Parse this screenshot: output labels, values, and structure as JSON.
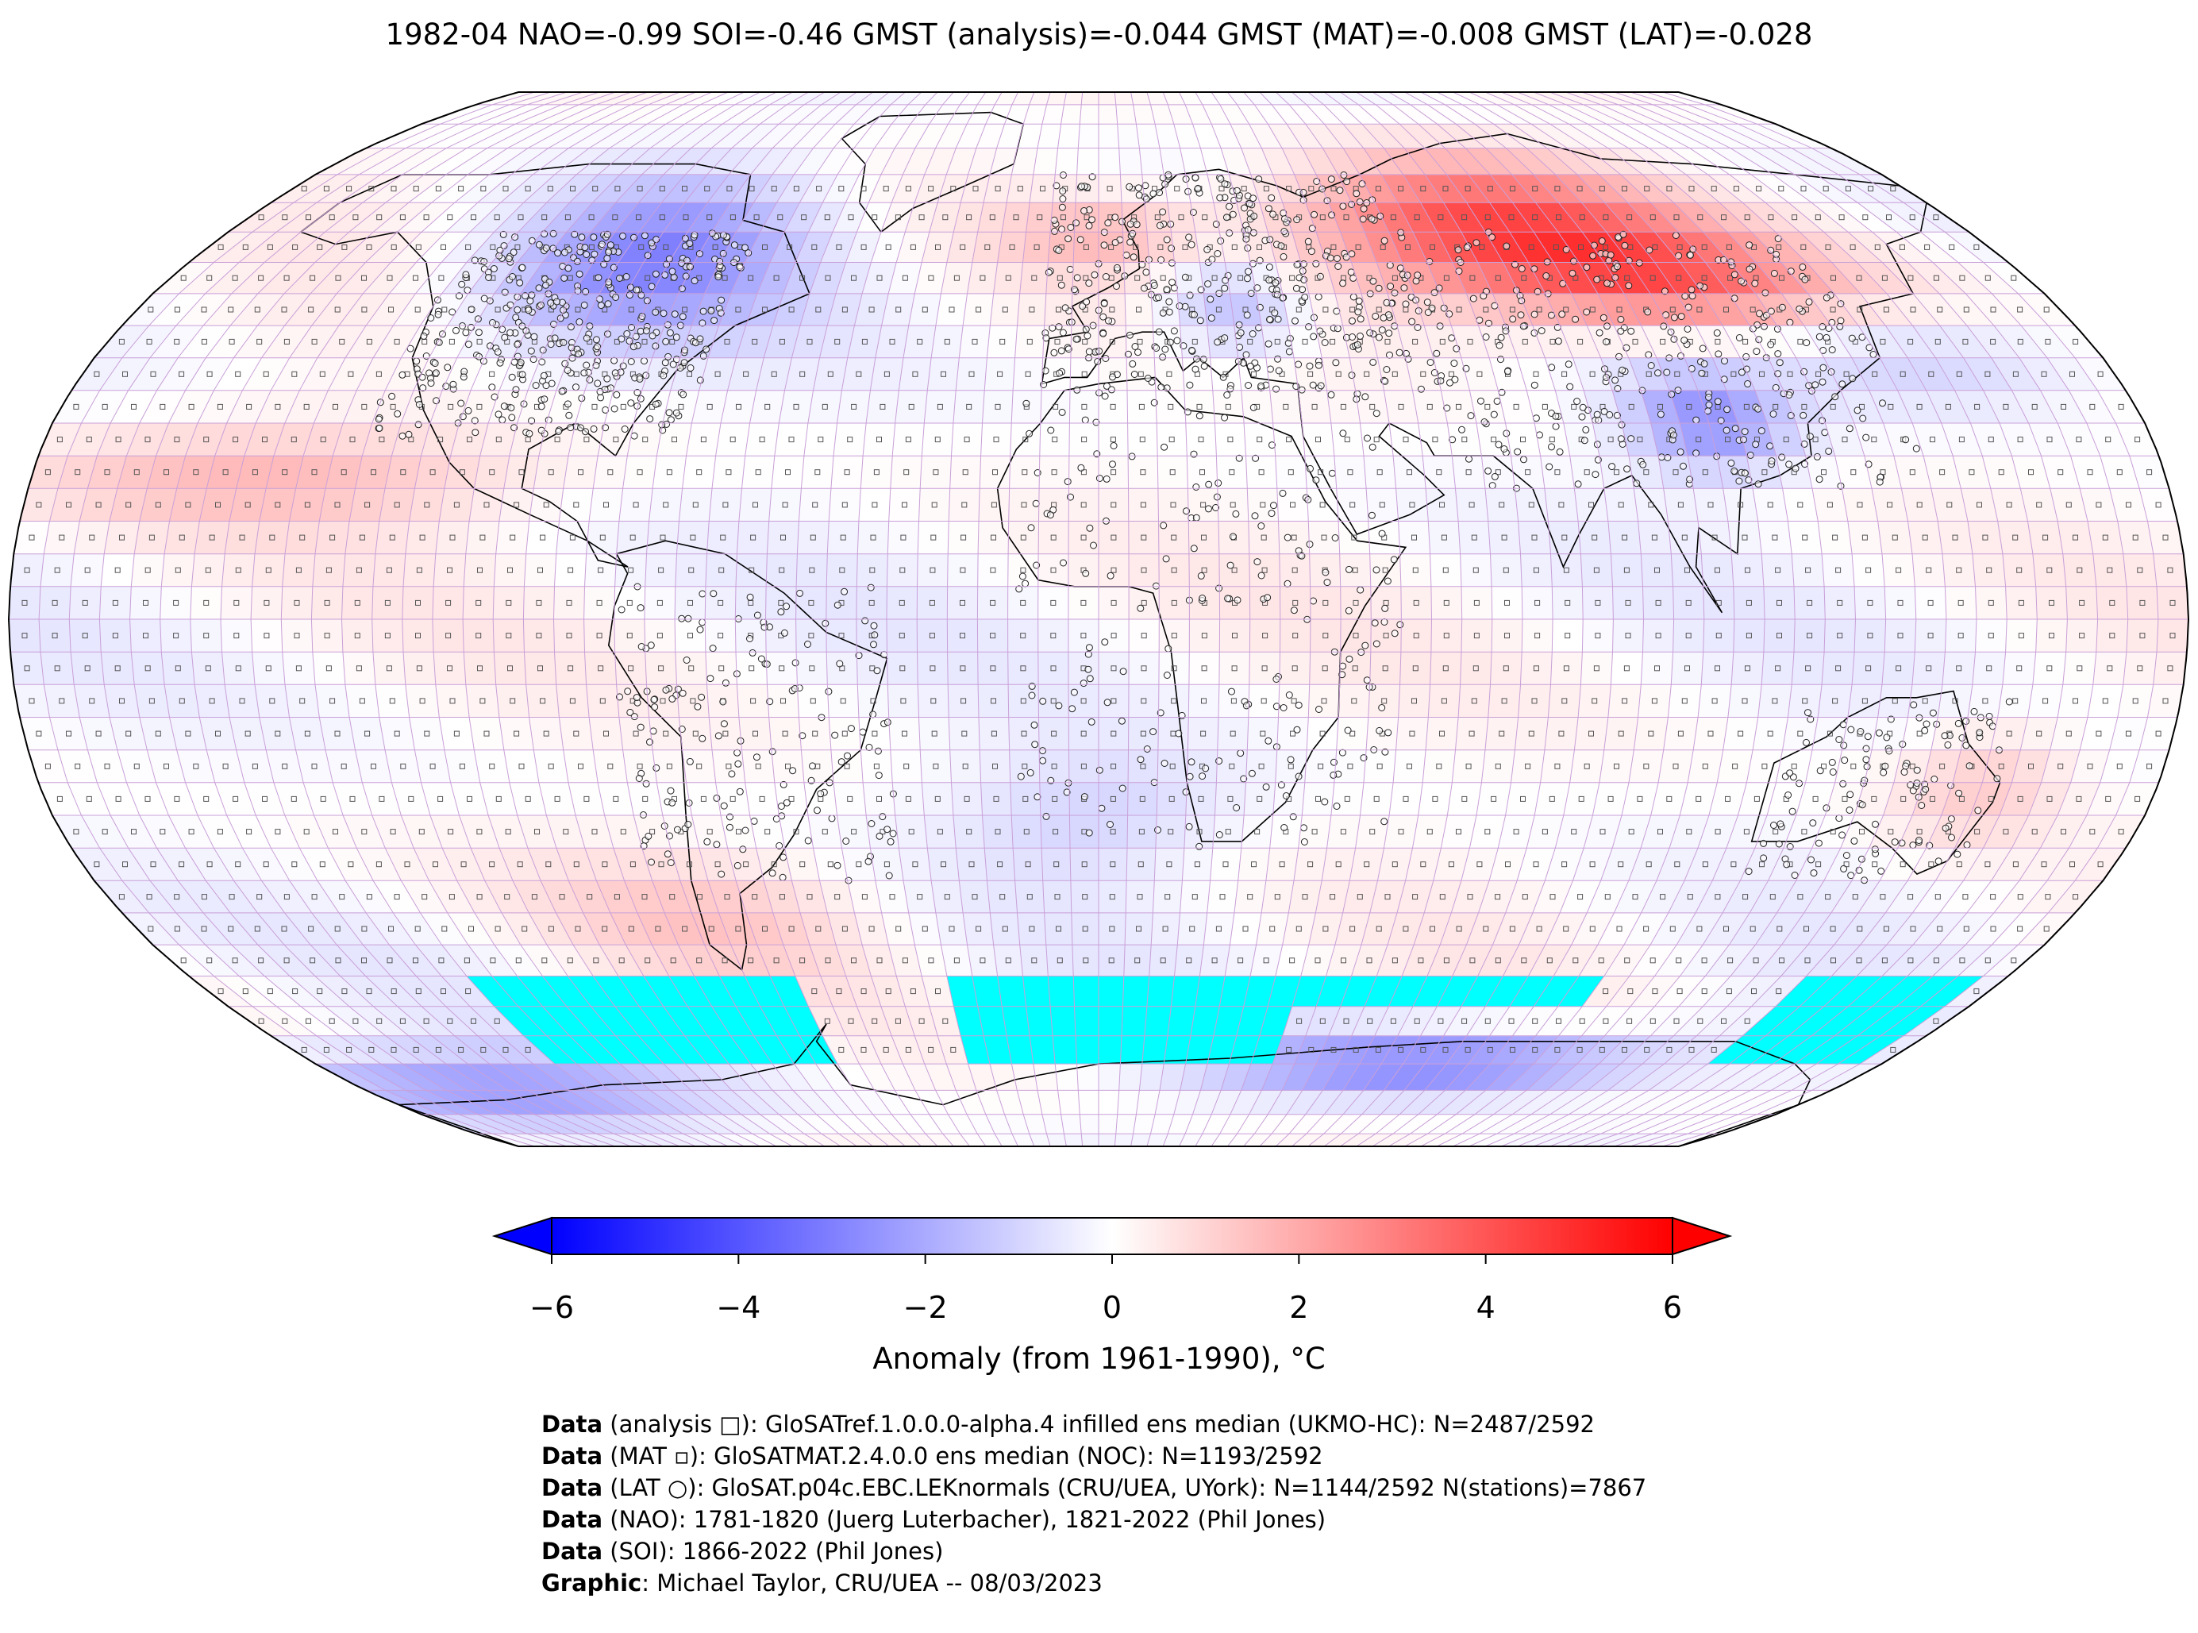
{
  "title": "1982-04 NAO=-0.99 SOI=-0.46 GMST (analysis)=-0.044 GMST (MAT)=-0.008 GMST (LAT)=-0.028",
  "colorbar": {
    "label": "Anomaly (from 1961-1990), °C",
    "ticks": [
      "−6",
      "−4",
      "−2",
      "0",
      "2",
      "4",
      "6"
    ],
    "tick_values": [
      -6,
      -4,
      -2,
      0,
      2,
      4,
      6
    ],
    "colors": {
      "min": "#0000ff",
      "mid": "#ffffff",
      "max": "#ff0000",
      "missing": "#00ffff"
    }
  },
  "credits": [
    {
      "key": "Data",
      "text": " (analysis □): GloSATref.1.0.0.0-alpha.4 infilled ens median (UKMO-HC): N=2487/2592"
    },
    {
      "key": "Data",
      "text": " (MAT ▫): GloSATMAT.2.4.0.0 ens median (NOC): N=1193/2592"
    },
    {
      "key": "Data",
      "text": " (LAT ○): GloSAT.p04c.EBC.LEKnormals (CRU/UEA, UYork): N=1144/2592 N(stations)=7867"
    },
    {
      "key": "Data",
      "text": " (NAO): 1781-1820 (Juerg Luterbacher), 1821-2022 (Phil Jones)"
    },
    {
      "key": "Data",
      "text": " (SOI): 1866-2022 (Phil Jones)"
    },
    {
      "key": "Graphic",
      "text": ": Michael Taylor, CRU/UEA -- 08/03/2023"
    }
  ],
  "chart_data": {
    "type": "heatmap",
    "projection": "Robinson",
    "variable": "temperature anomaly",
    "units": "°C",
    "vmin": -6,
    "vmax": 6,
    "regions": [
      {
        "name": "Siberia / Northern Eurasia",
        "anomaly": 4.5
      },
      {
        "name": "North America (north-east)",
        "anomaly": -2.5
      },
      {
        "name": "Central / Eastern Europe",
        "anomaly": -2.0
      },
      {
        "name": "Central / Southern China",
        "anomaly": -2.5
      },
      {
        "name": "Subtropical North Pacific",
        "anomaly": 1.5
      },
      {
        "name": "Southern Ocean (Pacific sector)",
        "anomaly": 1.0
      },
      {
        "name": "Antarctic coast (Indian sector)",
        "anomaly": -3.0
      },
      {
        "name": "Southern Ocean sea-ice zone",
        "anomaly": null
      }
    ]
  }
}
